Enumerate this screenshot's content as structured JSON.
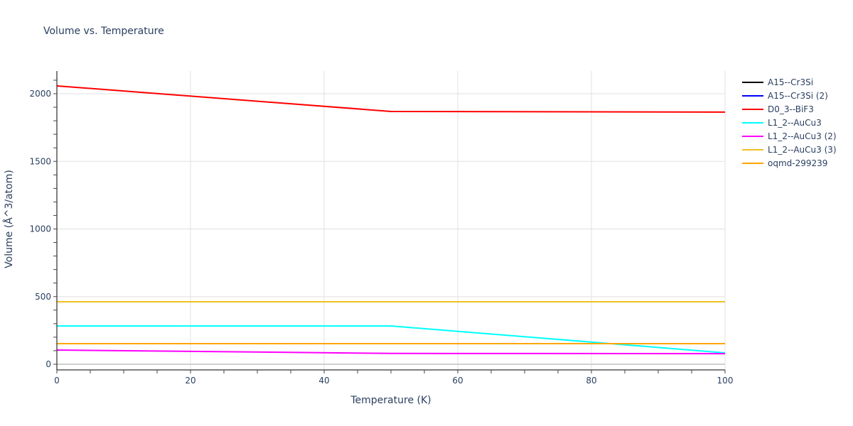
{
  "chart_data": {
    "type": "line",
    "title": "Volume vs. Temperature",
    "xlabel": "Temperature (K)",
    "ylabel": "Volume (Å^3/atom)",
    "xlim": [
      0,
      100
    ],
    "ylim": [
      -40,
      2170
    ],
    "x_ticks": [
      0,
      20,
      40,
      60,
      80,
      100
    ],
    "y_ticks": [
      0,
      500,
      1000,
      1500,
      2000
    ],
    "grid": true,
    "legend_position": "right",
    "series": [
      {
        "name": "A15--Cr3Si",
        "color": "#000000",
        "x": [
          0,
          50,
          100
        ],
        "values": [
          152,
          152,
          152
        ]
      },
      {
        "name": "A15--Cr3Si (2)",
        "color": "#0000ff",
        "x": [
          0,
          50,
          100
        ],
        "values": [
          152,
          152,
          152
        ]
      },
      {
        "name": "D0_3--BiF3",
        "color": "#ff0000",
        "x": [
          0,
          50,
          100
        ],
        "values": [
          2058,
          1869,
          1864
        ]
      },
      {
        "name": "L1_2--AuCu3",
        "color": "#00ffff",
        "x": [
          0,
          50,
          100
        ],
        "values": [
          283,
          283,
          84
        ]
      },
      {
        "name": "L1_2--AuCu3 (2)",
        "color": "#ff00ff",
        "x": [
          0,
          50,
          100
        ],
        "values": [
          105,
          80,
          78
        ]
      },
      {
        "name": "L1_2--AuCu3 (3)",
        "color": "#f0c020",
        "x": [
          0,
          50,
          100
        ],
        "values": [
          462,
          462,
          462
        ]
      },
      {
        "name": "oqmd-299239",
        "color": "#ffa500",
        "x": [
          0,
          50,
          100
        ],
        "values": [
          152,
          152,
          152
        ]
      }
    ]
  }
}
